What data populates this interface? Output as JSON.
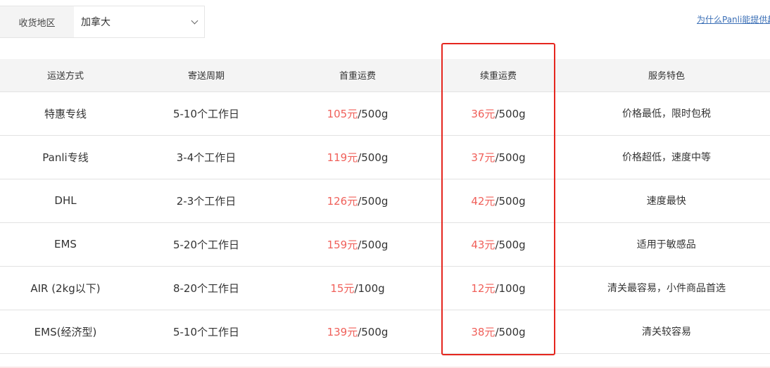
{
  "region": {
    "label": "收货地区",
    "selected": "加拿大"
  },
  "link": "为什么Panli能提供超",
  "table": {
    "headers": [
      "运送方式",
      "寄送周期",
      "首重运费",
      "续重运费",
      "服务特色"
    ],
    "rows": [
      {
        "method": "特惠专线",
        "period": "5-10个工作日",
        "first_price": "105元",
        "first_unit": "/500g",
        "next_price": "36元",
        "next_unit": "/500g",
        "feature": "价格最低，限时包税"
      },
      {
        "method": "Panli专线",
        "period": "3-4个工作日",
        "first_price": "119元",
        "first_unit": "/500g",
        "next_price": "37元",
        "next_unit": "/500g",
        "feature": "价格超低，速度中等"
      },
      {
        "method": "DHL",
        "period": "2-3个工作日",
        "first_price": "126元",
        "first_unit": "/500g",
        "next_price": "42元",
        "next_unit": "/500g",
        "feature": "速度最快"
      },
      {
        "method": "EMS",
        "period": "5-20个工作日",
        "first_price": "159元",
        "first_unit": "/500g",
        "next_price": "43元",
        "next_unit": "/500g",
        "feature": "适用于敏感品"
      },
      {
        "method": "AIR (2kg以下)",
        "period": "8-20个工作日",
        "first_price": "15元",
        "first_unit": "/100g",
        "next_price": "12元",
        "next_unit": "/100g",
        "feature": "清关最容易，小件商品首选"
      },
      {
        "method": "EMS(经济型)",
        "period": "5-10个工作日",
        "first_price": "139元",
        "first_unit": "/500g",
        "next_price": "38元",
        "next_unit": "/500g",
        "feature": "清关较容易"
      }
    ]
  },
  "colors": {
    "price": "#f0605a",
    "highlight": "#e5261e",
    "link": "#3b6fb6"
  }
}
